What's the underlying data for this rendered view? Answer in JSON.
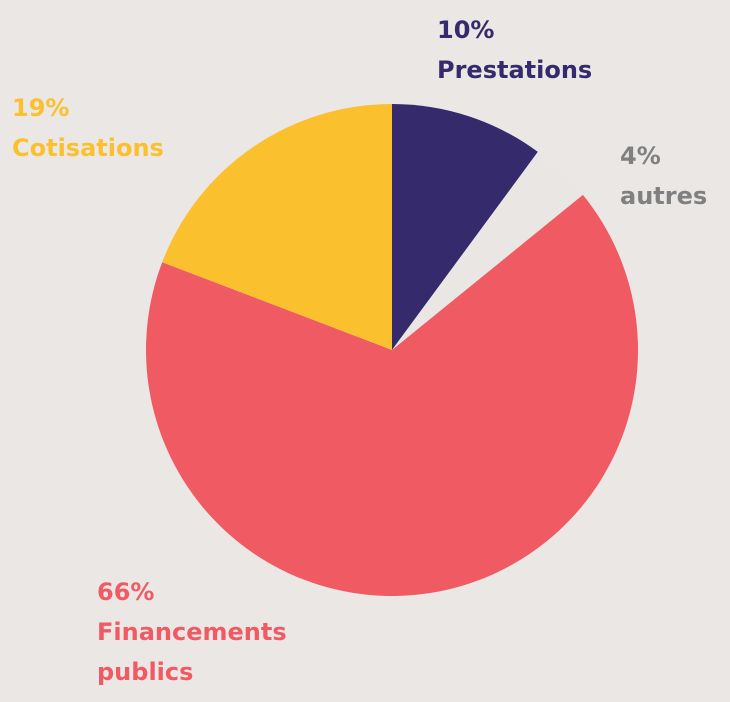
{
  "chart_data": {
    "type": "pie",
    "categories": [
      "Prestations",
      "autres",
      "Financements publics",
      "Cotisations"
    ],
    "values": [
      10,
      4,
      66,
      19
    ],
    "value_labels": [
      "10%",
      "4%",
      "66%",
      "19%"
    ],
    "colors": [
      "#352a6b",
      "#e9e6e4",
      "#f05a63",
      "#fbc02d"
    ],
    "label_colors": [
      "#352a6b",
      "#808080",
      "#f05a63",
      "#fbc02d"
    ],
    "background": "#eae7e5"
  }
}
